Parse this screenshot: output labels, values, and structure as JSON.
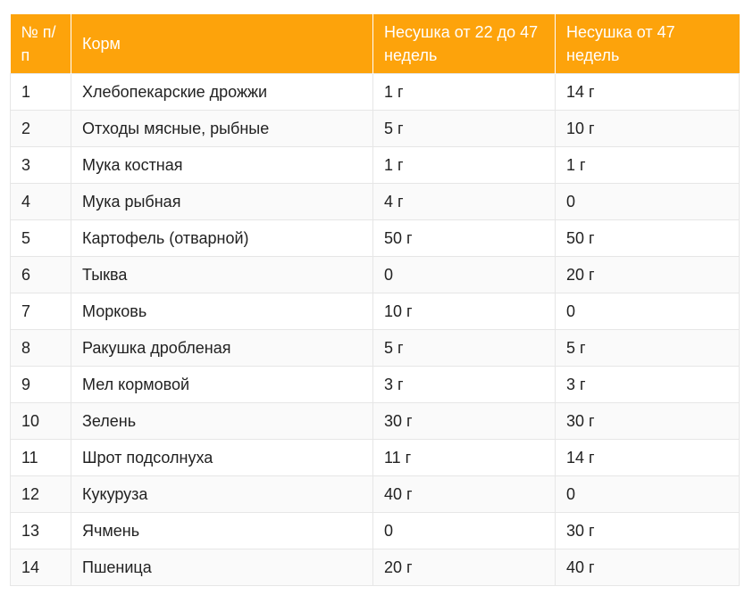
{
  "table": {
    "headers": {
      "num": "№ п/п",
      "name": "Корм",
      "col1": "Несушка от 22 до 47 недель",
      "col2": "Несушка от 47 недель"
    },
    "rows": [
      {
        "num": "1",
        "name": "Хлебопекарские дрожжи",
        "v1": "1 г",
        "v2": "14 г"
      },
      {
        "num": "2",
        "name": "Отходы мясные, рыбные",
        "v1": "5 г",
        "v2": "10 г"
      },
      {
        "num": "3",
        "name": "Мука костная",
        "v1": "1 г",
        "v2": "1 г"
      },
      {
        "num": "4",
        "name": "Мука рыбная",
        "v1": "4 г",
        "v2": "0"
      },
      {
        "num": "5",
        "name": "Картофель (отварной)",
        "v1": "50 г",
        "v2": "50 г"
      },
      {
        "num": "6",
        "name": "Тыква",
        "v1": "0",
        "v2": "20 г"
      },
      {
        "num": "7",
        "name": "Морковь",
        "v1": "10 г",
        "v2": "0"
      },
      {
        "num": "8",
        "name": "Ракушка дробленая",
        "v1": "5 г",
        "v2": "5 г"
      },
      {
        "num": "9",
        "name": "Мел кормовой",
        "v1": "3 г",
        "v2": "3 г"
      },
      {
        "num": "10",
        "name": "Зелень",
        "v1": "30 г",
        "v2": "30 г"
      },
      {
        "num": "11",
        "name": "Шрот подсолнуха",
        "v1": "11 г",
        "v2": "14 г"
      },
      {
        "num": "12",
        "name": "Кукуруза",
        "v1": "40 г",
        "v2": "0"
      },
      {
        "num": "13",
        "name": "Ячмень",
        "v1": "0",
        "v2": "30 г"
      },
      {
        "num": "14",
        "name": "Пшеница",
        "v1": "20 г",
        "v2": "40 г"
      }
    ]
  },
  "colors": {
    "header_bg": "#fda30b",
    "header_text": "#ffffff",
    "border": "#e6e6e6",
    "stripe": "#fafafa"
  }
}
